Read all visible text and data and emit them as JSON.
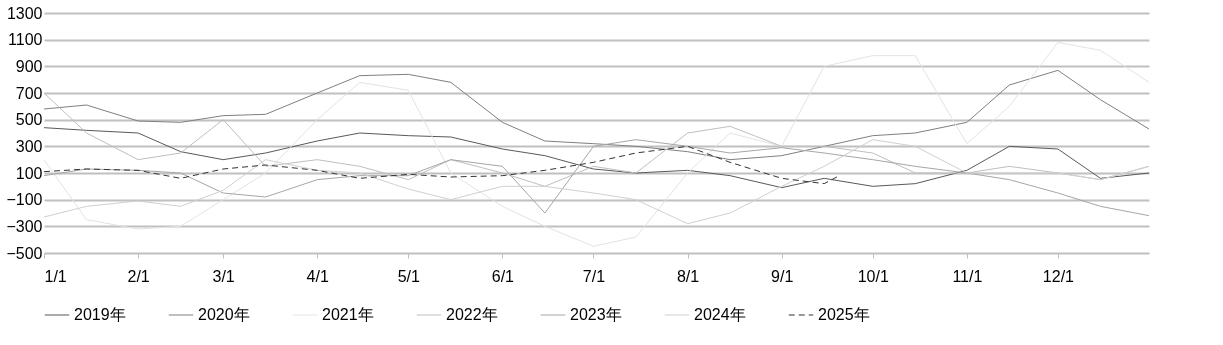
{
  "chart_data": {
    "type": "line",
    "x": [
      "--01-01",
      "--01-15",
      "--02-01",
      "--02-15",
      "--03-01",
      "--03-15",
      "--04-01",
      "--04-15",
      "--05-01",
      "--05-15",
      "--06-01",
      "--06-15",
      "--07-01",
      "--07-15",
      "--08-01",
      "--08-15",
      "--09-01",
      "--09-15",
      "--10-01",
      "--10-15",
      "--11-01",
      "--11-15",
      "--12-01",
      "--12-15",
      "--12-31"
    ],
    "series": [
      {
        "name": "2019年",
        "color": "#595959",
        "values": [
          440,
          420,
          400,
          260,
          200,
          250,
          340,
          400,
          380,
          370,
          280,
          230,
          130,
          100,
          120,
          80,
          -10,
          60,
          0,
          20,
          120,
          300,
          280,
          60,
          100
        ]
      },
      {
        "name": "2020年",
        "color": "#7f7f7f",
        "values": [
          580,
          610,
          490,
          480,
          530,
          540,
          700,
          830,
          840,
          780,
          480,
          340,
          320,
          300,
          260,
          200,
          230,
          300,
          380,
          400,
          480,
          760,
          870,
          650,
          430
        ]
      },
      {
        "name": "2021年",
        "color": "#e3e3e3",
        "values": [
          200,
          -250,
          -320,
          -300,
          -100,
          100,
          500,
          780,
          720,
          100,
          -150,
          -300,
          -450,
          -380,
          100,
          400,
          300,
          900,
          980,
          980,
          320,
          600,
          1080,
          1020,
          780
        ]
      },
      {
        "name": "2022年",
        "color": "#bfbfbf",
        "values": [
          700,
          400,
          200,
          250,
          500,
          150,
          200,
          150,
          50,
          200,
          100,
          0,
          150,
          100,
          400,
          450,
          300,
          300,
          250,
          100,
          100,
          150,
          100,
          50,
          150
        ]
      },
      {
        "name": "2023年",
        "color": "#a6a6a6",
        "values": [
          80,
          130,
          120,
          100,
          -50,
          -80,
          50,
          80,
          80,
          200,
          150,
          -200,
          300,
          350,
          300,
          250,
          290,
          250,
          200,
          150,
          100,
          50,
          -50,
          -150,
          -220
        ]
      },
      {
        "name": "2024年",
        "color": "#d0d0d0",
        "values": [
          -230,
          -150,
          -110,
          -150,
          -30,
          200,
          120,
          100,
          -20,
          -100,
          0,
          0,
          -50,
          -100,
          -280,
          -200,
          0,
          150,
          350,
          300,
          100,
          100,
          100,
          50,
          150
        ]
      },
      {
        "name": "2025年",
        "color": "#333333",
        "line_style": "dashed",
        "x": [
          "--01-01",
          "--01-15",
          "--02-01",
          "--02-15",
          "--03-01",
          "--03-15",
          "--04-01",
          "--04-15",
          "--05-01",
          "--05-15",
          "--06-01",
          "--06-15",
          "--07-01",
          "--07-15",
          "--08-01",
          "--08-15",
          "--09-01",
          "--09-15",
          "--09-20"
        ],
        "values": [
          110,
          130,
          120,
          60,
          130,
          160,
          120,
          60,
          90,
          70,
          80,
          120,
          180,
          250,
          300,
          180,
          60,
          20,
          80
        ]
      }
    ],
    "line_style": "solid",
    "xlim": [
      "--01-01",
      "--12-31"
    ],
    "xticks": [
      {
        "value": "--01-01",
        "label": "1/1"
      },
      {
        "value": "--02-01",
        "label": "2/1"
      },
      {
        "value": "--03-01",
        "label": "3/1"
      },
      {
        "value": "--04-01",
        "label": "4/1"
      },
      {
        "value": "--05-01",
        "label": "5/1"
      },
      {
        "value": "--06-01",
        "label": "6/1"
      },
      {
        "value": "--07-01",
        "label": "7/1"
      },
      {
        "value": "--08-01",
        "label": "8/1"
      },
      {
        "value": "--09-01",
        "label": "9/1"
      },
      {
        "value": "--10-01",
        "label": "10/1"
      },
      {
        "value": "--11-01",
        "label": "11/1"
      },
      {
        "value": "--12-01",
        "label": "12/1"
      }
    ],
    "ylim": [
      -500,
      1300
    ],
    "yticks": [
      -500,
      -300,
      -100,
      100,
      300,
      500,
      700,
      900,
      1100,
      1300
    ],
    "grid": "y",
    "legend": "bottom",
    "marker": "none"
  }
}
